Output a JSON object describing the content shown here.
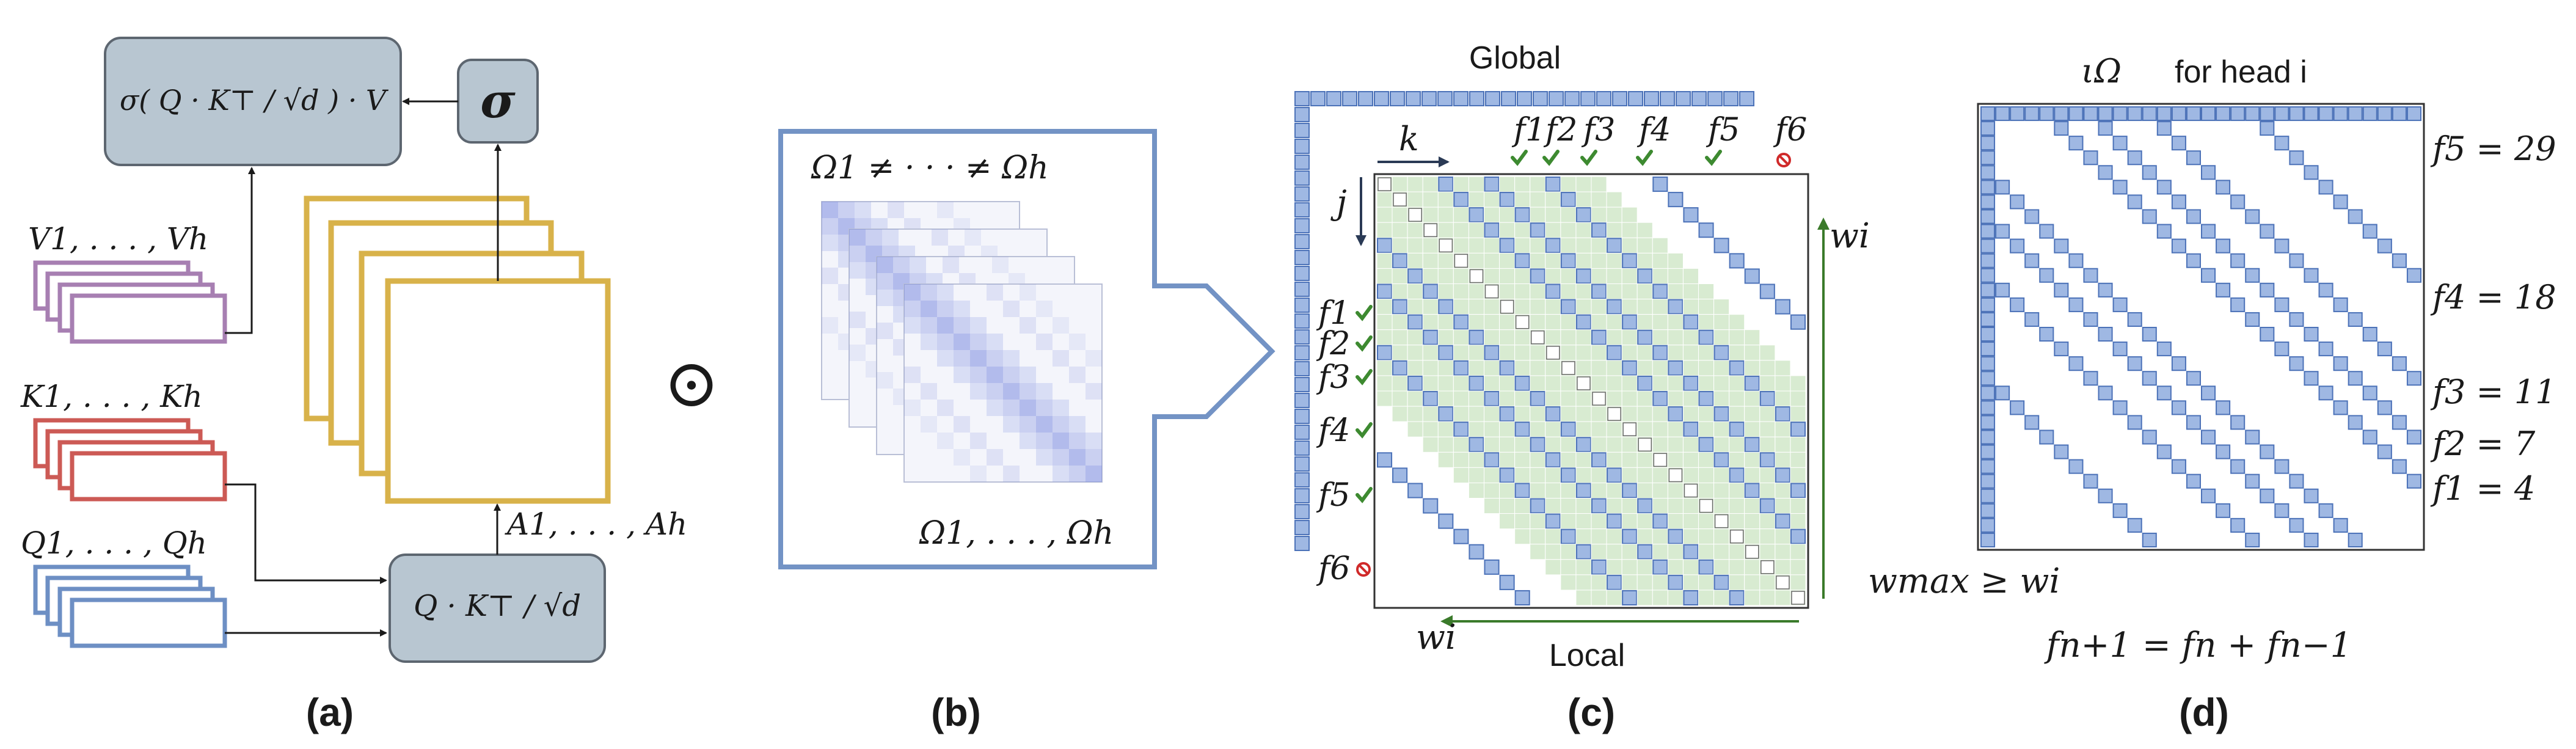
{
  "colors": {
    "gray_box_fill": "#b8c6d1",
    "gray_box_stroke": "#5d6670",
    "value_stroke": "#a77fb2",
    "key_stroke": "#cc5a55",
    "query_stroke": "#6d8fc4",
    "attn_stroke": "#d8b24a",
    "panel_b_stroke": "#7393c5",
    "grid_fill": "#d8ebd1",
    "cell_fill": "#9fb8e3",
    "cell_stroke": "#4c72b8",
    "check_green": "#3d8a30",
    "stop_red": "#d02a2a",
    "arrow_green": "#3a7a2a"
  },
  "panel_a": {
    "output_formula": "σ( Q · K⊤ / √d ) · V",
    "sigma_label": "σ",
    "values_label": "V1, . . . , Vh",
    "keys_label": "K1, . . . , Kh",
    "queries_label": "Q1, . . . , Qh",
    "scores_formula": "Q · K⊤ / √d",
    "attn_label": "A1, . . . , Ah",
    "panel_label": "(a)"
  },
  "odot_symbol": "⊙",
  "panel_b": {
    "top_label": "Ω1 ≠ · · · ≠ Ωh",
    "bottom_label": "Ω1, . . . , Ωh",
    "panel_label": "(b)"
  },
  "panel_c": {
    "global_label": "Global",
    "local_label": "Local",
    "k_label": "k",
    "j_label": "j",
    "w_label": "wi",
    "f_labels_top": [
      "f1",
      "f2",
      "f3",
      "f4",
      "f5",
      "f6"
    ],
    "f_labels_left": [
      "f1",
      "f2",
      "f3",
      "f4",
      "f5",
      "f6"
    ],
    "check_icon": "check-icon",
    "stop_icon": "stop-icon",
    "panel_label": "(c)"
  },
  "panel_d": {
    "title_symbol": "ιΩ",
    "title_text": "for head i",
    "fib_labels": [
      {
        "name": "f5",
        "value": 29
      },
      {
        "name": "f4",
        "value": 18
      },
      {
        "name": "f3",
        "value": 11
      },
      {
        "name": "f2",
        "value": 7
      },
      {
        "name": "f1",
        "value": 4
      }
    ],
    "wmax_label": "wmax ≥ wi",
    "recurrence": "fn+1 = fn + fn−1",
    "panel_label": "(d)"
  }
}
